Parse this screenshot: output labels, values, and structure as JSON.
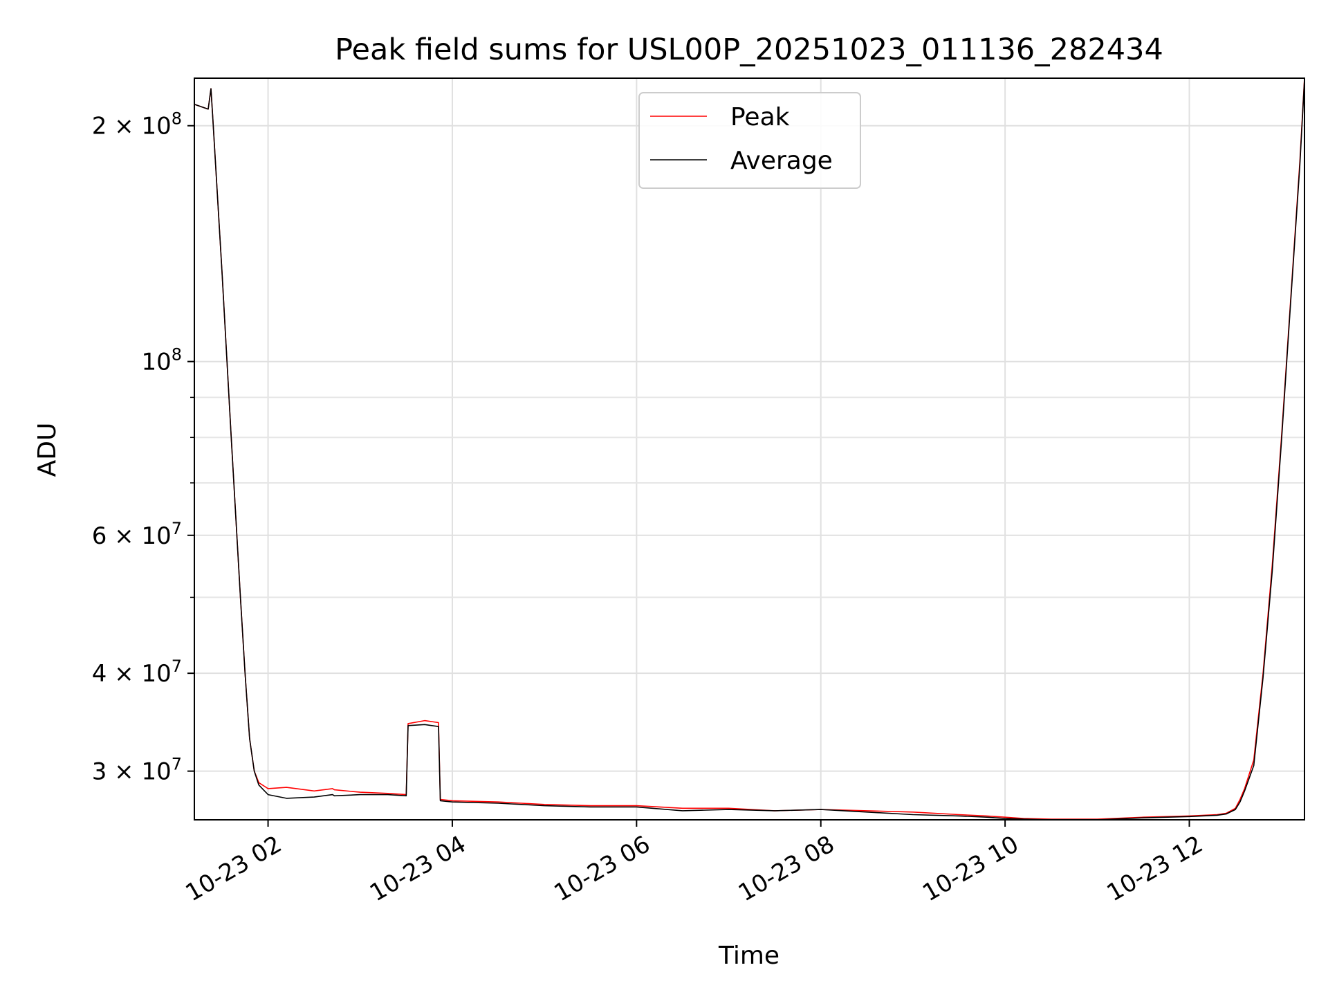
{
  "chart_data": {
    "type": "line",
    "title": "Peak field sums for USL00P_20251023_011136_282434",
    "xlabel": "Time",
    "ylabel": "ADU",
    "yscale": "log",
    "xlim_hours": [
      1.2,
      13.25
    ],
    "ylim": [
      26000000,
      230000000
    ],
    "grid": true,
    "legend_position": "top-center",
    "x_ticks": [
      {
        "value": 2,
        "label": "10-23 02"
      },
      {
        "value": 4,
        "label": "10-23 04"
      },
      {
        "value": 6,
        "label": "10-23 06"
      },
      {
        "value": 8,
        "label": "10-23 08"
      },
      {
        "value": 10,
        "label": "10-23 10"
      },
      {
        "value": 12,
        "label": "10-23 12"
      }
    ],
    "y_ticks": [
      {
        "value": 30000000,
        "label": "3 × 10^7",
        "mantissa": "3",
        "exp": "7"
      },
      {
        "value": 40000000,
        "label": "4 × 10^7",
        "mantissa": "4",
        "exp": "7"
      },
      {
        "value": 60000000,
        "label": "6 × 10^7",
        "mantissa": "6",
        "exp": "7"
      },
      {
        "value": 100000000,
        "label": "10^8",
        "mantissa": "",
        "exp": "8"
      },
      {
        "value": 200000000,
        "label": "2 × 10^8",
        "mantissa": "2",
        "exp": "8"
      }
    ],
    "y_minor_ticks": [
      50000000,
      70000000,
      80000000,
      90000000
    ],
    "series": [
      {
        "name": "Peak",
        "color": "#ff0000",
        "x_hours": [
          1.2,
          1.35,
          1.38,
          1.4,
          1.5,
          1.6,
          1.7,
          1.75,
          1.8,
          1.85,
          1.9,
          2.0,
          2.2,
          2.5,
          2.7,
          2.72,
          3.0,
          3.3,
          3.5,
          3.52,
          3.7,
          3.85,
          3.87,
          4.0,
          4.5,
          5.0,
          5.5,
          6.0,
          6.5,
          7.0,
          7.5,
          8.0,
          8.5,
          9.0,
          9.5,
          9.8,
          10.0,
          10.2,
          10.5,
          11.0,
          11.5,
          12.0,
          12.3,
          12.4,
          12.5,
          12.55,
          12.6,
          12.7,
          12.8,
          12.9,
          13.0,
          13.1,
          13.2,
          13.25
        ],
        "values": [
          213000000,
          210000000,
          223000000,
          205000000,
          130000000,
          80000000,
          50000000,
          40000000,
          33000000,
          30000000,
          29000000,
          28500000,
          28600000,
          28300000,
          28500000,
          28400000,
          28200000,
          28100000,
          28000000,
          34500000,
          34800000,
          34600000,
          27600000,
          27500000,
          27400000,
          27200000,
          27100000,
          27100000,
          26900000,
          26900000,
          26700000,
          26800000,
          26700000,
          26600000,
          26400000,
          26300000,
          26200000,
          26100000,
          26050000,
          26050000,
          26200000,
          26300000,
          26400000,
          26500000,
          26900000,
          27600000,
          28500000,
          31000000,
          40000000,
          55000000,
          80000000,
          120000000,
          180000000,
          230000000
        ]
      },
      {
        "name": "Average",
        "color": "#000000",
        "x_hours": [
          1.2,
          1.35,
          1.38,
          1.4,
          1.5,
          1.6,
          1.7,
          1.75,
          1.8,
          1.85,
          1.9,
          2.0,
          2.2,
          2.5,
          2.7,
          2.72,
          3.0,
          3.3,
          3.5,
          3.52,
          3.7,
          3.85,
          3.87,
          4.0,
          4.5,
          5.0,
          5.5,
          6.0,
          6.5,
          7.0,
          7.5,
          8.0,
          8.5,
          9.0,
          9.5,
          9.8,
          10.0,
          10.2,
          10.5,
          11.0,
          11.5,
          12.0,
          12.3,
          12.4,
          12.5,
          12.55,
          12.6,
          12.7,
          12.8,
          12.9,
          13.0,
          13.1,
          13.2,
          13.25
        ],
        "values": [
          213000000,
          210000000,
          223000000,
          205000000,
          130000000,
          80000000,
          50000000,
          40000000,
          33000000,
          30000000,
          28800000,
          28000000,
          27700000,
          27800000,
          28000000,
          27900000,
          28000000,
          28000000,
          27900000,
          34300000,
          34400000,
          34200000,
          27500000,
          27400000,
          27300000,
          27100000,
          27000000,
          27000000,
          26700000,
          26800000,
          26700000,
          26800000,
          26600000,
          26400000,
          26300000,
          26200000,
          26100000,
          26050000,
          26000000,
          26000000,
          26150000,
          26250000,
          26350000,
          26450000,
          26800000,
          27400000,
          28300000,
          30500000,
          39500000,
          54000000,
          79000000,
          119000000,
          178000000,
          229000000
        ]
      }
    ]
  }
}
